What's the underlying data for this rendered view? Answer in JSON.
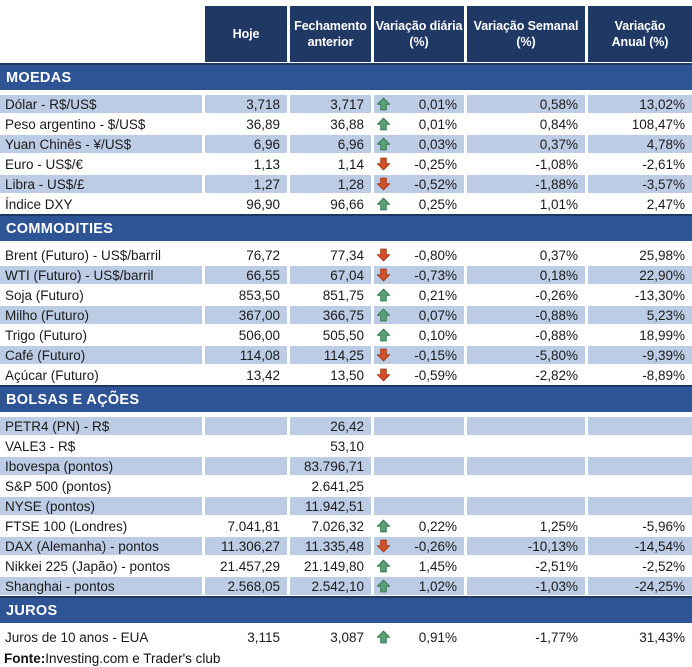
{
  "header_display": [
    "Hoje",
    "Fechamento\nanterior",
    "Variação diária\n(%)",
    "Variação Semanal\n(%)",
    "Variação\nAnual (%)"
  ],
  "chart_data": {
    "type": "table",
    "columns": [
      "",
      "Hoje",
      "Fechamento anterior",
      "Variação diária (%)",
      "Variação Semanal (%)",
      "Variação Anual (%)"
    ],
    "sections": [
      {
        "title": "MOEDAS",
        "rows": [
          {
            "label": "Dólar - R$/US$",
            "hoje": "3,718",
            "fechamento_anterior": "3,717",
            "direction": "up",
            "variacao_diaria": "0,01%",
            "variacao_semanal": "0,58%",
            "variacao_anual": "13,02%",
            "shaded": true
          },
          {
            "label": "Peso argentino - $/US$",
            "hoje": "36,89",
            "fechamento_anterior": "36,88",
            "direction": "up",
            "variacao_diaria": "0,01%",
            "variacao_semanal": "0,84%",
            "variacao_anual": "108,47%",
            "shaded": false
          },
          {
            "label": "Yuan Chinês - ¥/US$",
            "hoje": "6,96",
            "fechamento_anterior": "6,96",
            "direction": "up",
            "variacao_diaria": "0,03%",
            "variacao_semanal": "0,37%",
            "variacao_anual": "4,78%",
            "shaded": true
          },
          {
            "label": "Euro - US$/€",
            "hoje": "1,13",
            "fechamento_anterior": "1,14",
            "direction": "down",
            "variacao_diaria": "-0,25%",
            "variacao_semanal": "-1,08%",
            "variacao_anual": "-2,61%",
            "shaded": false
          },
          {
            "label": "Libra - US$/£",
            "hoje": "1,27",
            "fechamento_anterior": "1,28",
            "direction": "down",
            "variacao_diaria": "-0,52%",
            "variacao_semanal": "-1,88%",
            "variacao_anual": "-3,57%",
            "shaded": true
          },
          {
            "label": "Índice DXY",
            "hoje": "96,90",
            "fechamento_anterior": "96,66",
            "direction": "up",
            "variacao_diaria": "0,25%",
            "variacao_semanal": "1,01%",
            "variacao_anual": "2,47%",
            "shaded": false
          }
        ]
      },
      {
        "title": "COMMODITIES",
        "rows": [
          {
            "label": "Brent (Futuro) - US$/barril",
            "hoje": "76,72",
            "fechamento_anterior": "77,34",
            "direction": "down",
            "variacao_diaria": "-0,80%",
            "variacao_semanal": "0,37%",
            "variacao_anual": "25,98%",
            "shaded": false
          },
          {
            "label": "WTI (Futuro) - US$/barril",
            "hoje": "66,55",
            "fechamento_anterior": "67,04",
            "direction": "down",
            "variacao_diaria": "-0,73%",
            "variacao_semanal": "0,18%",
            "variacao_anual": "22,90%",
            "shaded": true
          },
          {
            "label": "Soja (Futuro)",
            "hoje": "853,50",
            "fechamento_anterior": "851,75",
            "direction": "up",
            "variacao_diaria": "0,21%",
            "variacao_semanal": "-0,26%",
            "variacao_anual": "-13,30%",
            "shaded": false
          },
          {
            "label": "Milho (Futuro)",
            "hoje": "367,00",
            "fechamento_anterior": "366,75",
            "direction": "up",
            "variacao_diaria": "0,07%",
            "variacao_semanal": "-0,88%",
            "variacao_anual": "5,23%",
            "shaded": true
          },
          {
            "label": "Trigo (Futuro)",
            "hoje": "506,00",
            "fechamento_anterior": "505,50",
            "direction": "up",
            "variacao_diaria": "0,10%",
            "variacao_semanal": "-0,88%",
            "variacao_anual": "18,99%",
            "shaded": false
          },
          {
            "label": "Café (Futuro)",
            "hoje": "114,08",
            "fechamento_anterior": "114,25",
            "direction": "down",
            "variacao_diaria": "-0,15%",
            "variacao_semanal": "-5,80%",
            "variacao_anual": "-9,39%",
            "shaded": true
          },
          {
            "label": "Açúcar (Futuro)",
            "hoje": "13,42",
            "fechamento_anterior": "13,50",
            "direction": "down",
            "variacao_diaria": "-0,59%",
            "variacao_semanal": "-2,82%",
            "variacao_anual": "-8,89%",
            "shaded": false
          }
        ]
      },
      {
        "title": "BOLSAS E AÇÕES",
        "rows": [
          {
            "label": "PETR4 (PN) - R$",
            "hoje": "",
            "fechamento_anterior": "26,42",
            "direction": null,
            "variacao_diaria": "",
            "variacao_semanal": "",
            "variacao_anual": "",
            "shaded": true
          },
          {
            "label": "VALE3 - R$",
            "hoje": "",
            "fechamento_anterior": "53,10",
            "direction": null,
            "variacao_diaria": "",
            "variacao_semanal": "",
            "variacao_anual": "",
            "shaded": false
          },
          {
            "label": "Ibovespa (pontos)",
            "hoje": "",
            "fechamento_anterior": "83.796,71",
            "direction": null,
            "variacao_diaria": "",
            "variacao_semanal": "",
            "variacao_anual": "",
            "shaded": true
          },
          {
            "label": "S&P 500 (pontos)",
            "hoje": "",
            "fechamento_anterior": "2.641,25",
            "direction": null,
            "variacao_diaria": "",
            "variacao_semanal": "",
            "variacao_anual": "",
            "shaded": false
          },
          {
            "label": "NYSE (pontos)",
            "hoje": "",
            "fechamento_anterior": "11.942,51",
            "direction": null,
            "variacao_diaria": "",
            "variacao_semanal": "",
            "variacao_anual": "",
            "shaded": true
          },
          {
            "label": "FTSE 100 (Londres)",
            "hoje": "7.041,81",
            "fechamento_anterior": "7.026,32",
            "direction": "up",
            "variacao_diaria": "0,22%",
            "variacao_semanal": "1,25%",
            "variacao_anual": "-5,96%",
            "shaded": false
          },
          {
            "label": "DAX (Alemanha) - pontos",
            "hoje": "11.306,27",
            "fechamento_anterior": "11.335,48",
            "direction": "down",
            "variacao_diaria": "-0,26%",
            "variacao_semanal": "-10,13%",
            "variacao_anual": "-14,54%",
            "shaded": true
          },
          {
            "label": "Nikkei 225 (Japão) - pontos",
            "hoje": "21.457,29",
            "fechamento_anterior": "21.149,80",
            "direction": "up",
            "variacao_diaria": "1,45%",
            "variacao_semanal": "-2,51%",
            "variacao_anual": "-2,52%",
            "shaded": false
          },
          {
            "label": "Shanghai - pontos",
            "hoje": "2.568,05",
            "fechamento_anterior": "2.542,10",
            "direction": "up",
            "variacao_diaria": "1,02%",
            "variacao_semanal": "-1,03%",
            "variacao_anual": "-24,25%",
            "shaded": true
          }
        ]
      },
      {
        "title": "JUROS",
        "rows": [
          {
            "label": "Juros de 10 anos - EUA",
            "hoje": "3,115",
            "fechamento_anterior": "3,087",
            "direction": "up",
            "variacao_diaria": "0,91%",
            "variacao_semanal": "-1,77%",
            "variacao_anual": "31,43%",
            "shaded": false
          }
        ]
      }
    ]
  },
  "footer": {
    "label": "Fonte:",
    "text": " Investing.com e Trader's club"
  },
  "colors": {
    "header_bg": "#1F3864",
    "section_bg": "#2F5496",
    "section_border": "#1F3864",
    "row_shaded": "#BDCCE5",
    "up_arrow": "#5C9E77",
    "up_arrow_border": "#2F7A4C",
    "down_arrow": "#D2502A",
    "down_arrow_border": "#A23A14"
  }
}
